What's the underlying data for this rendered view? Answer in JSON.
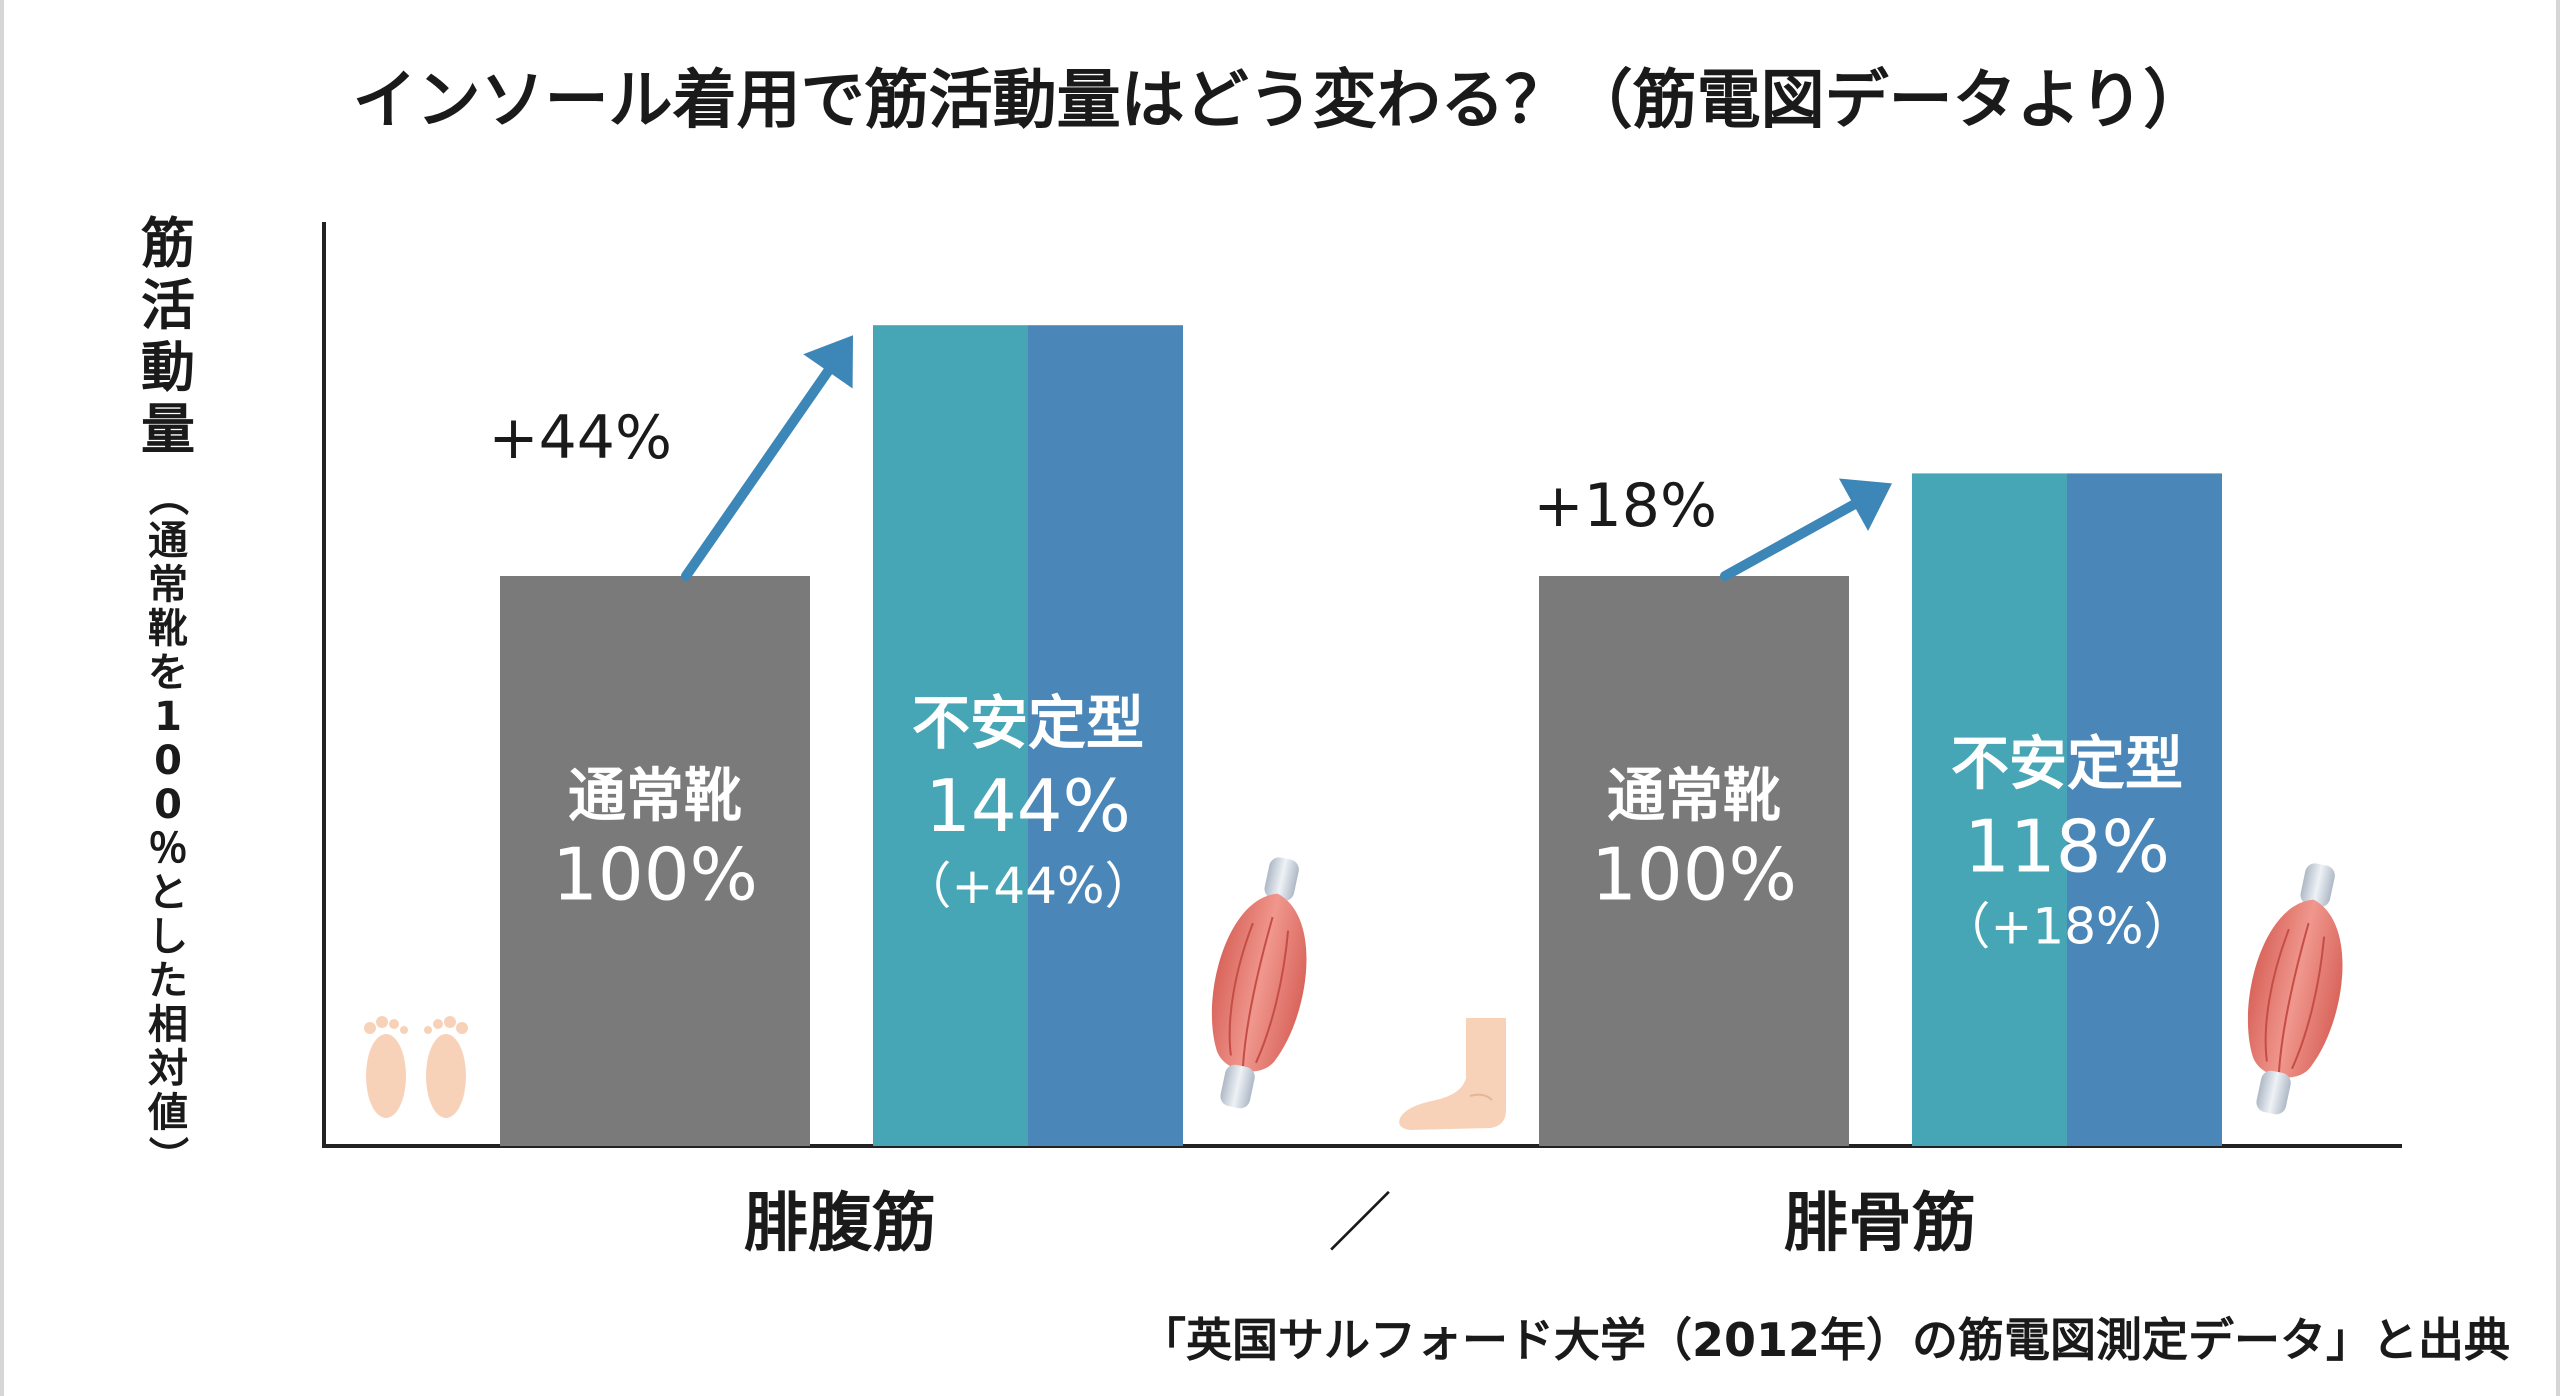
{
  "chart_data": {
    "type": "bar",
    "title": "インソール着用で筋活動量はどう変わる？（筋電図データより）",
    "ylabel": "筋活動量（通常靴を100％とした相対値）",
    "xlabel": "",
    "ylim": [
      0,
      160
    ],
    "grid": false,
    "categories": [
      "腓腹筋",
      "腓骨筋"
    ],
    "separator": "／",
    "series": [
      {
        "name": "通常靴",
        "values": [
          100,
          100
        ],
        "color": "#7a7a7a"
      },
      {
        "name": "不安定型",
        "values": [
          144,
          118
        ],
        "color": "#3f8fb2"
      }
    ],
    "bar_labels": [
      {
        "category": "腓腹筋",
        "series": "通常靴",
        "line1": "通常靴",
        "line2": "100%"
      },
      {
        "category": "腓腹筋",
        "series": "不安定型",
        "line1": "不安定型",
        "line2": "144%",
        "line3": "（+44%）"
      },
      {
        "category": "腓骨筋",
        "series": "通常靴",
        "line1": "通常靴",
        "line2": "100%"
      },
      {
        "category": "腓骨筋",
        "series": "不安定型",
        "line1": "不安定型",
        "line2": "118%",
        "line3": "（+18%）"
      }
    ],
    "annotations": [
      {
        "category": "腓腹筋",
        "text": "+44%",
        "kind": "up-arrow"
      },
      {
        "category": "腓骨筋",
        "text": "+18%",
        "kind": "up-arrow"
      }
    ],
    "source": "「英国サルフォード大学（2012年）の筋電図測定データ」と出典"
  },
  "icons": {
    "footprints": "footprints-icon",
    "foot": "foot-icon",
    "muscle": "muscle-icon"
  },
  "colors": {
    "gray_bar": "#7a7a7a",
    "teal": "#44a4b8",
    "blue": "#4a8ab8",
    "arrow": "#3d86b8",
    "axis": "#222222",
    "skin": "#f8d4bb",
    "muscle_red": "#e8837a"
  }
}
